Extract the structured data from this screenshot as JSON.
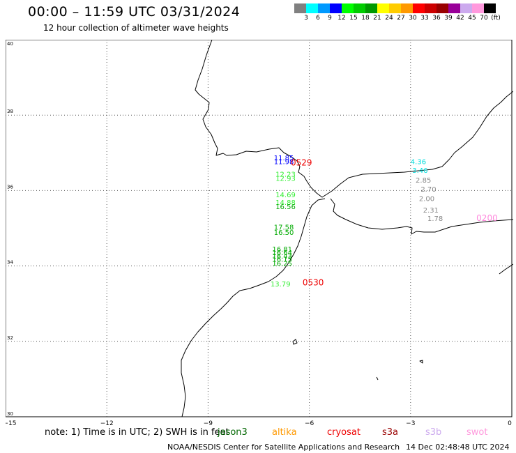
{
  "header": {
    "title": "00:00 – 11:59 UTC 03/31/2024",
    "subtitle": "12 hour collection of altimeter wave heights"
  },
  "colorbar": {
    "colors": [
      "#808080",
      "#00ffff",
      "#0099ff",
      "#0000ff",
      "#00ff00",
      "#00cc00",
      "#009900",
      "#ffff00",
      "#ffcc00",
      "#ff9900",
      "#ff0000",
      "#cc0000",
      "#990000",
      "#990099",
      "#ccaaee",
      "#ff99dd",
      "#000000"
    ],
    "labels": [
      "3",
      "6",
      "9",
      "12",
      "15",
      "18",
      "21",
      "24",
      "27",
      "30",
      "33",
      "36",
      "39",
      "42",
      "45",
      "70",
      "(ft)"
    ]
  },
  "map": {
    "lon_range": [
      -15,
      0
    ],
    "lat_range": [
      30,
      40
    ],
    "x_ticks": [
      {
        "value": -15,
        "label": "−15"
      },
      {
        "value": -12,
        "label": "−12"
      },
      {
        "value": -9,
        "label": "−9"
      },
      {
        "value": -6,
        "label": "−6"
      },
      {
        "value": -3,
        "label": "−3"
      },
      {
        "value": 0,
        "label": "0"
      }
    ],
    "y_ticks": [
      {
        "value": 40,
        "label": "40"
      },
      {
        "value": 38,
        "label": "38"
      },
      {
        "value": 36,
        "label": "36"
      },
      {
        "value": 34,
        "label": "34"
      },
      {
        "value": 32,
        "label": "32"
      },
      {
        "value": 30,
        "label": "30"
      }
    ],
    "grid": "dotted",
    "coast_color": "#000000",
    "observations": [
      {
        "lon": -7.05,
        "lat": 36.8,
        "text": "11.85",
        "color": "#0000ff"
      },
      {
        "lon": -7.05,
        "lat": 36.7,
        "text": "11.98",
        "color": "#0000ff"
      },
      {
        "lon": -7.0,
        "lat": 36.37,
        "text": "12.23",
        "color": "#33ee33"
      },
      {
        "lon": -7.0,
        "lat": 36.26,
        "text": "12.93",
        "color": "#33ee33"
      },
      {
        "lon": -7.0,
        "lat": 35.82,
        "text": "14.69",
        "color": "#33ee33"
      },
      {
        "lon": -7.0,
        "lat": 35.62,
        "text": "14.88",
        "color": "#33ee33"
      },
      {
        "lon": -7.0,
        "lat": 35.51,
        "text": "16.56",
        "color": "#00aa00"
      },
      {
        "lon": -7.05,
        "lat": 34.96,
        "text": "17.58",
        "color": "#00aa00"
      },
      {
        "lon": -7.05,
        "lat": 34.82,
        "text": "16.50",
        "color": "#00aa00"
      },
      {
        "lon": -7.1,
        "lat": 34.38,
        "text": "16.81",
        "color": "#00aa00"
      },
      {
        "lon": -7.1,
        "lat": 34.29,
        "text": "16.64",
        "color": "#00aa00"
      },
      {
        "lon": -7.1,
        "lat": 34.2,
        "text": "16.43",
        "color": "#00aa00"
      },
      {
        "lon": -7.1,
        "lat": 34.11,
        "text": "16.15",
        "color": "#00aa00"
      },
      {
        "lon": -7.1,
        "lat": 34.0,
        "text": "16.25",
        "color": "#00aa00"
      },
      {
        "lon": -7.15,
        "lat": 33.46,
        "text": "13.79",
        "color": "#33ee33"
      },
      {
        "lon": -3.0,
        "lat": 36.7,
        "text": "4.36",
        "color": "#00dddd"
      },
      {
        "lon": -2.95,
        "lat": 36.47,
        "text": "3.46",
        "color": "#00dddd"
      },
      {
        "lon": -2.85,
        "lat": 36.21,
        "text": "2.85",
        "color": "#888888"
      },
      {
        "lon": -2.7,
        "lat": 35.97,
        "text": "2.70",
        "color": "#888888"
      },
      {
        "lon": -2.75,
        "lat": 35.72,
        "text": "2.00",
        "color": "#888888"
      },
      {
        "lon": -2.63,
        "lat": 35.42,
        "text": "2.31",
        "color": "#888888"
      },
      {
        "lon": -2.5,
        "lat": 35.19,
        "text": "1.78",
        "color": "#888888"
      }
    ],
    "pass_labels": [
      {
        "lon": -6.55,
        "lat": 36.66,
        "text": "0529",
        "color": "#ee0000"
      },
      {
        "lon": -6.2,
        "lat": 33.48,
        "text": "0530",
        "color": "#ee0000"
      },
      {
        "lon": -1.05,
        "lat": 35.19,
        "text": "0200",
        "color": "#ff88dd"
      }
    ]
  },
  "footer": {
    "note": "note:  1) Time is in UTC;  2) SWH is in feet",
    "satellites": [
      {
        "name": "jason3",
        "color": "#006600"
      },
      {
        "name": "altika",
        "color": "#ff9900"
      },
      {
        "name": "cryosat",
        "color": "#ee0000"
      },
      {
        "name": "s3a",
        "color": "#990000"
      },
      {
        "name": "s3b",
        "color": "#ccaaee"
      },
      {
        "name": "swot",
        "color": "#ff99dd"
      }
    ],
    "credit": "NOAA/NESDIS Center for Satellite Applications and Research",
    "timestamp": "14 Dec 02:48:48 UTC 2024"
  }
}
